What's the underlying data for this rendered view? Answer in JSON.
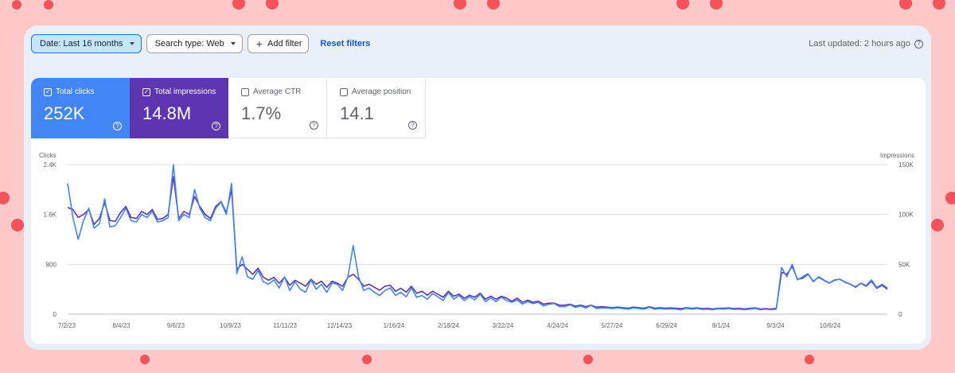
{
  "toolbar": {
    "date_filter": "Date: Last 16 months",
    "search_type": "Search type: Web",
    "add_filter": "Add filter",
    "reset": "Reset filters",
    "last_updated": "Last updated: 2 hours ago"
  },
  "metrics": [
    {
      "label": "Total clicks",
      "value": "252K",
      "checked": true
    },
    {
      "label": "Total impressions",
      "value": "14.8M",
      "checked": true
    },
    {
      "label": "Average CTR",
      "value": "1.7%",
      "checked": false
    },
    {
      "label": "Average position",
      "value": "14.1",
      "checked": false
    }
  ],
  "colors": {
    "clicks": "#4285f4",
    "impressions": "#5e35b1",
    "grid": "#e0e0e0"
  },
  "chart_data": {
    "type": "line",
    "left_axis_title": "Clicks",
    "right_axis_title": "Impressions",
    "left_ticks": [
      "2.4K",
      "1.6K",
      "800",
      "0"
    ],
    "right_ticks": [
      "150K",
      "100K",
      "50K",
      "0"
    ],
    "ylim_left": [
      0,
      2400
    ],
    "ylim_right": [
      0,
      150000
    ],
    "x_ticks": [
      "7/2/23",
      "8/4/23",
      "9/6/23",
      "10/9/23",
      "11/11/23",
      "12/14/23",
      "1/16/24",
      "2/18/24",
      "3/22/24",
      "4/24/24",
      "5/27/24",
      "6/29/24",
      "8/1/24",
      "9/3/24",
      "10/6/24"
    ],
    "series": [
      {
        "name": "Total clicks",
        "axis": "left",
        "values": [
          2100,
          1550,
          1200,
          1500,
          1700,
          1380,
          1450,
          1850,
          1400,
          1420,
          1550,
          1700,
          1500,
          1480,
          1600,
          1550,
          1650,
          1480,
          1500,
          1550,
          2400,
          1500,
          1600,
          1550,
          2000,
          1700,
          1550,
          1500,
          1700,
          1800,
          1600,
          2100,
          650,
          920,
          600,
          560,
          700,
          520,
          480,
          550,
          420,
          600,
          380,
          520,
          400,
          350,
          550,
          400,
          480,
          350,
          500,
          480,
          380,
          600,
          1100,
          600,
          380,
          420,
          350,
          300,
          380,
          420,
          300,
          350,
          280,
          420,
          270,
          300,
          240,
          330,
          280,
          220,
          350,
          240,
          300,
          220,
          280,
          230,
          320,
          200,
          260,
          200,
          270,
          220,
          190,
          230,
          160,
          200,
          170,
          190,
          130,
          160,
          170,
          120,
          120,
          150,
          110,
          130,
          100,
          140,
          90,
          100,
          100,
          90,
          100,
          90,
          80,
          100,
          90,
          80,
          110,
          80,
          90,
          80,
          85,
          80,
          70,
          95,
          80,
          90,
          75,
          80,
          70,
          85,
          80,
          90,
          75,
          80,
          70,
          80,
          90,
          70,
          80,
          70,
          80,
          750,
          600,
          800,
          550,
          600,
          650,
          520,
          600,
          550,
          500,
          550,
          560,
          520,
          480,
          440,
          500,
          460,
          550,
          430,
          480,
          420
        ],
        "sample_note": "values sampled evenly across the plotted date range"
      },
      {
        "name": "Total impressions",
        "axis": "right",
        "values": [
          107000,
          105000,
          97000,
          100000,
          105000,
          90000,
          96000,
          112000,
          94000,
          93000,
          102000,
          108000,
          97000,
          96000,
          103000,
          100000,
          105000,
          95000,
          96000,
          100000,
          138000,
          96000,
          103000,
          100000,
          118000,
          108000,
          100000,
          96000,
          108000,
          113000,
          102000,
          125000,
          45000,
          50000,
          45000,
          40000,
          46000,
          37000,
          34000,
          37000,
          31000,
          37000,
          29000,
          34000,
          31000,
          28000,
          35000,
          30000,
          33000,
          27000,
          33000,
          31000,
          28000,
          37000,
          40000,
          35000,
          28000,
          30000,
          27000,
          24000,
          28000,
          29000,
          23000,
          26000,
          22000,
          28000,
          21000,
          23000,
          19000,
          23000,
          20000,
          17000,
          23000,
          18000,
          20000,
          16000,
          19000,
          17000,
          21000,
          15000,
          18000,
          15000,
          18000,
          16000,
          13000,
          16000,
          12000,
          14000,
          12000,
          13000,
          10000,
          11000,
          11000,
          9000,
          9000,
          10000,
          8000,
          9000,
          7500,
          9000,
          7000,
          7500,
          7000,
          6500,
          7000,
          6500,
          6000,
          7000,
          6500,
          6000,
          7500,
          6000,
          6500,
          6000,
          6200,
          6000,
          5500,
          6500,
          5800,
          6200,
          5500,
          5800,
          5200,
          6000,
          5800,
          6200,
          5500,
          5800,
          5200,
          5800,
          6200,
          5200,
          5600,
          5200,
          5800,
          42000,
          40000,
          48000,
          35000,
          36000,
          40000,
          33000,
          37000,
          34000,
          31000,
          34000,
          35000,
          32000,
          30000,
          27000,
          31000,
          28000,
          33000,
          26000,
          29000,
          25000
        ],
        "sample_note": "values sampled evenly across the plotted date range"
      }
    ]
  }
}
